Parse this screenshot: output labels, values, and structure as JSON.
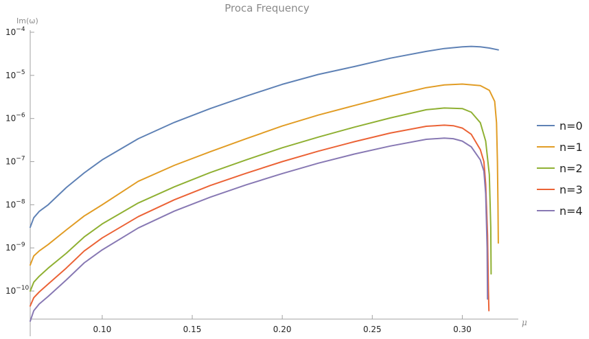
{
  "chart_data": {
    "type": "line",
    "title": "Proca Frequency",
    "xlabel": "μ",
    "ylabel": "Im(ω)",
    "yscale": "log",
    "xlim": [
      0.06,
      0.325
    ],
    "ylim": [
      2e-11,
      0.0001
    ],
    "x_ticks": [
      0.1,
      0.15,
      0.2,
      0.25,
      0.3
    ],
    "x_tick_labels": [
      "0.10",
      "0.15",
      "0.20",
      "0.25",
      "0.30"
    ],
    "y_ticks": [
      {
        "value": 1e-10,
        "base": "10",
        "exp": "−10"
      },
      {
        "value": 1e-09,
        "base": "10",
        "exp": "−9"
      },
      {
        "value": 1e-08,
        "base": "10",
        "exp": "−8"
      },
      {
        "value": 1e-07,
        "base": "10",
        "exp": "−7"
      },
      {
        "value": 1e-06,
        "base": "10",
        "exp": "−6"
      },
      {
        "value": 1e-05,
        "base": "10",
        "exp": "−5"
      },
      {
        "value": 0.0001,
        "base": "10",
        "exp": "−4"
      }
    ],
    "legend_position": "right",
    "grid": false,
    "series": [
      {
        "name": "n=0",
        "color": "#5e81b5",
        "points": [
          [
            0.06,
            3e-09
          ],
          [
            0.062,
            5e-09
          ],
          [
            0.065,
            7e-09
          ],
          [
            0.07,
            1e-08
          ],
          [
            0.08,
            2.5e-08
          ],
          [
            0.09,
            5.5e-08
          ],
          [
            0.1,
            1.1e-07
          ],
          [
            0.12,
            3.4e-07
          ],
          [
            0.14,
            8.1e-07
          ],
          [
            0.16,
            1.7e-06
          ],
          [
            0.18,
            3.3e-06
          ],
          [
            0.2,
            6.2e-06
          ],
          [
            0.22,
            1.05e-05
          ],
          [
            0.24,
            1.6e-05
          ],
          [
            0.26,
            2.5e-05
          ],
          [
            0.28,
            3.6e-05
          ],
          [
            0.29,
            4.2e-05
          ],
          [
            0.3,
            4.6e-05
          ],
          [
            0.305,
            4.7e-05
          ],
          [
            0.31,
            4.6e-05
          ],
          [
            0.315,
            4.3e-05
          ],
          [
            0.32,
            3.9e-05
          ]
        ]
      },
      {
        "name": "n=1",
        "color": "#e19c24",
        "points": [
          [
            0.06,
            4e-10
          ],
          [
            0.062,
            6.5e-10
          ],
          [
            0.065,
            8.5e-10
          ],
          [
            0.07,
            1.2e-09
          ],
          [
            0.08,
            2.6e-09
          ],
          [
            0.09,
            5.5e-09
          ],
          [
            0.1,
            1e-08
          ],
          [
            0.12,
            3.5e-08
          ],
          [
            0.14,
            8.2e-08
          ],
          [
            0.16,
            1.7e-07
          ],
          [
            0.18,
            3.4e-07
          ],
          [
            0.2,
            6.7e-07
          ],
          [
            0.22,
            1.2e-06
          ],
          [
            0.24,
            2e-06
          ],
          [
            0.26,
            3.3e-06
          ],
          [
            0.28,
            5.2e-06
          ],
          [
            0.29,
            6e-06
          ],
          [
            0.3,
            6.3e-06
          ],
          [
            0.31,
            5.8e-06
          ],
          [
            0.315,
            4.5e-06
          ],
          [
            0.318,
            2.5e-06
          ],
          [
            0.319,
            8e-07
          ],
          [
            0.3195,
            1e-07
          ],
          [
            0.3198,
            1e-08
          ],
          [
            0.32,
            1.3e-09
          ]
        ]
      },
      {
        "name": "n=2",
        "color": "#8fb032",
        "points": [
          [
            0.06,
            1e-10
          ],
          [
            0.062,
            1.6e-10
          ],
          [
            0.065,
            2.2e-10
          ],
          [
            0.07,
            3.4e-10
          ],
          [
            0.08,
            7.5e-10
          ],
          [
            0.09,
            1.8e-09
          ],
          [
            0.1,
            3.6e-09
          ],
          [
            0.12,
            1.1e-08
          ],
          [
            0.14,
            2.6e-08
          ],
          [
            0.16,
            5.6e-08
          ],
          [
            0.18,
            1.1e-07
          ],
          [
            0.2,
            2.1e-07
          ],
          [
            0.22,
            3.7e-07
          ],
          [
            0.24,
            6.3e-07
          ],
          [
            0.26,
            1.03e-06
          ],
          [
            0.28,
            1.6e-06
          ],
          [
            0.29,
            1.75e-06
          ],
          [
            0.3,
            1.7e-06
          ],
          [
            0.305,
            1.4e-06
          ],
          [
            0.31,
            8e-07
          ],
          [
            0.313,
            3e-07
          ],
          [
            0.315,
            5e-08
          ],
          [
            0.3158,
            3e-09
          ],
          [
            0.316,
            2.5e-10
          ]
        ]
      },
      {
        "name": "n=3",
        "color": "#eb6235",
        "points": [
          [
            0.06,
            4.5e-11
          ],
          [
            0.062,
            7e-11
          ],
          [
            0.065,
            9.5e-11
          ],
          [
            0.07,
            1.45e-10
          ],
          [
            0.08,
            3.4e-10
          ],
          [
            0.09,
            8.5e-10
          ],
          [
            0.1,
            1.7e-09
          ],
          [
            0.12,
            5.3e-09
          ],
          [
            0.14,
            1.3e-08
          ],
          [
            0.16,
            2.8e-08
          ],
          [
            0.18,
            5.4e-08
          ],
          [
            0.2,
            1e-07
          ],
          [
            0.22,
            1.75e-07
          ],
          [
            0.24,
            2.9e-07
          ],
          [
            0.26,
            4.6e-07
          ],
          [
            0.28,
            6.6e-07
          ],
          [
            0.29,
            7e-07
          ],
          [
            0.295,
            6.8e-07
          ],
          [
            0.3,
            6e-07
          ],
          [
            0.305,
            4.3e-07
          ],
          [
            0.31,
            1.9e-07
          ],
          [
            0.312,
            1e-07
          ],
          [
            0.313,
            3e-08
          ],
          [
            0.314,
            2e-09
          ],
          [
            0.3145,
            1e-10
          ],
          [
            0.3148,
            3.5e-11
          ]
        ]
      },
      {
        "name": "n=4",
        "color": "#8778b3",
        "points": [
          [
            0.06,
            2e-11
          ],
          [
            0.062,
            3.5e-11
          ],
          [
            0.065,
            5e-11
          ],
          [
            0.07,
            7.5e-11
          ],
          [
            0.08,
            1.8e-10
          ],
          [
            0.09,
            4.5e-10
          ],
          [
            0.1,
            9e-10
          ],
          [
            0.12,
            2.9e-09
          ],
          [
            0.14,
            7.1e-09
          ],
          [
            0.16,
            1.5e-08
          ],
          [
            0.18,
            2.9e-08
          ],
          [
            0.2,
            5.3e-08
          ],
          [
            0.22,
            9.2e-08
          ],
          [
            0.24,
            1.5e-07
          ],
          [
            0.26,
            2.3e-07
          ],
          [
            0.28,
            3.3e-07
          ],
          [
            0.29,
            3.5e-07
          ],
          [
            0.295,
            3.4e-07
          ],
          [
            0.3,
            3e-07
          ],
          [
            0.305,
            2.2e-07
          ],
          [
            0.31,
            1.1e-07
          ],
          [
            0.312,
            6e-08
          ],
          [
            0.313,
            1.8e-08
          ],
          [
            0.3138,
            1e-09
          ],
          [
            0.314,
            6.5e-11
          ]
        ]
      }
    ]
  }
}
